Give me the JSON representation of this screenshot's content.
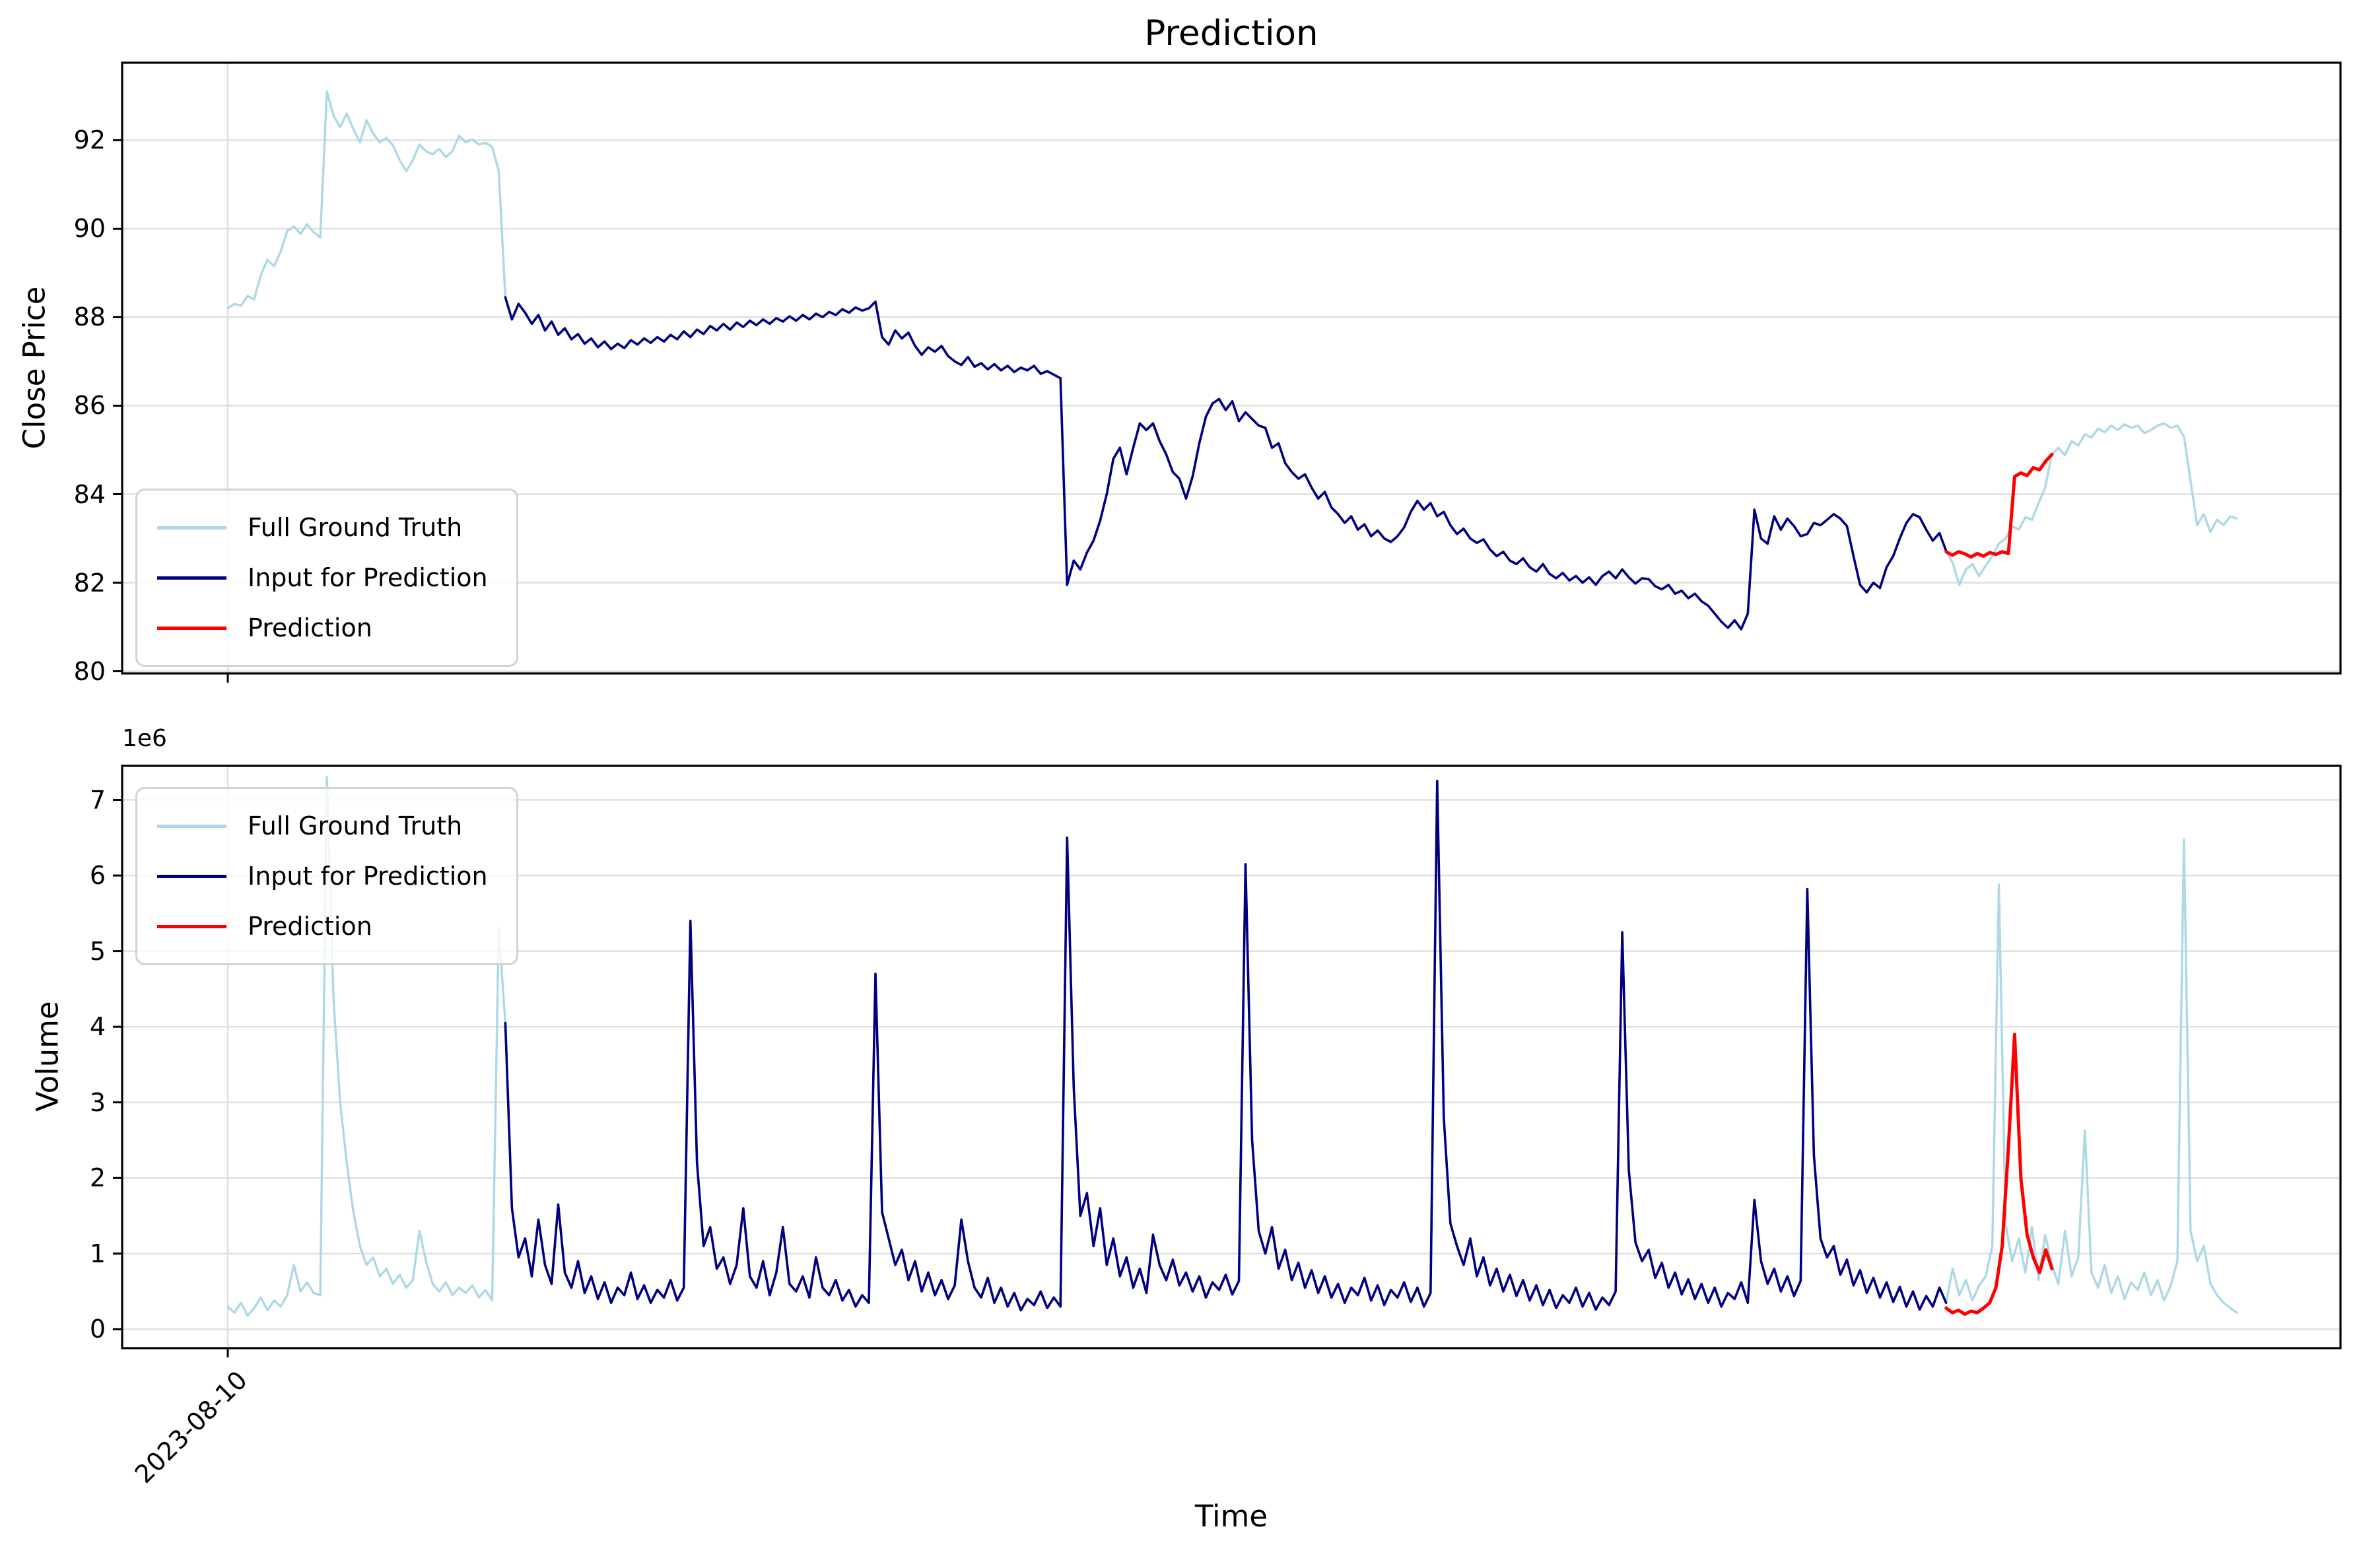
{
  "figure": {
    "title": "Prediction",
    "xlabel": "Time",
    "background": "#ffffff",
    "grid_color": "#dcdcdc",
    "spine_color": "#000000"
  },
  "series_meta": [
    {
      "name": "Full Ground Truth",
      "color": "#ADD8E6"
    },
    {
      "name": "Input for Prediction",
      "color": "#000080"
    },
    {
      "name": "Prediction",
      "color": "#FF0000"
    }
  ],
  "x_axis": {
    "tick_label": "2023-08-10",
    "tick_t": 0.0
  },
  "chart_data": [
    {
      "type": "line",
      "id": "price",
      "ylabel": "Close Price",
      "ylim": [
        79.95,
        93.75
      ],
      "yticks": [
        80,
        82,
        84,
        86,
        88,
        90,
        92
      ],
      "ytick_labels": [
        "80",
        "82",
        "84",
        "86",
        "88",
        "90",
        "92"
      ],
      "legend_position": "lower left",
      "input_window_t": [
        0.138,
        0.856
      ],
      "ground_truth": [
        88.2,
        88.3,
        88.26,
        88.48,
        88.4,
        88.95,
        89.3,
        89.15,
        89.48,
        89.95,
        90.05,
        89.88,
        90.1,
        89.92,
        89.8,
        93.1,
        92.55,
        92.3,
        92.6,
        92.25,
        91.95,
        92.45,
        92.15,
        91.95,
        92.05,
        91.88,
        91.55,
        91.3,
        91.55,
        91.9,
        91.75,
        91.68,
        91.8,
        91.62,
        91.75,
        92.1,
        91.95,
        92.02,
        91.9,
        91.94,
        91.85,
        91.3,
        88.45,
        87.95,
        88.3,
        88.1,
        87.85,
        88.05,
        87.7,
        87.9,
        87.6,
        87.75,
        87.5,
        87.62,
        87.4,
        87.52,
        87.32,
        87.45,
        87.28,
        87.4,
        87.3,
        87.48,
        87.38,
        87.52,
        87.42,
        87.55,
        87.45,
        87.6,
        87.5,
        87.68,
        87.55,
        87.72,
        87.62,
        87.8,
        87.7,
        87.85,
        87.72,
        87.88,
        87.78,
        87.92,
        87.82,
        87.95,
        87.85,
        87.98,
        87.9,
        88.02,
        87.92,
        88.05,
        87.95,
        88.08,
        88.0,
        88.12,
        88.05,
        88.18,
        88.1,
        88.22,
        88.15,
        88.2,
        88.35,
        87.55,
        87.38,
        87.7,
        87.52,
        87.65,
        87.35,
        87.15,
        87.32,
        87.22,
        87.35,
        87.12,
        87.0,
        86.92,
        87.1,
        86.88,
        86.96,
        86.82,
        86.94,
        86.8,
        86.9,
        86.76,
        86.86,
        86.8,
        86.9,
        86.72,
        86.78,
        86.7,
        86.62,
        81.95,
        82.5,
        82.3,
        82.68,
        82.95,
        83.4,
        84.0,
        84.8,
        85.05,
        84.45,
        85.05,
        85.6,
        85.45,
        85.6,
        85.2,
        84.9,
        84.5,
        84.35,
        83.9,
        84.4,
        85.15,
        85.75,
        86.05,
        86.15,
        85.9,
        86.1,
        85.65,
        85.85,
        85.7,
        85.55,
        85.5,
        85.05,
        85.15,
        84.7,
        84.5,
        84.35,
        84.45,
        84.15,
        83.9,
        84.05,
        83.7,
        83.55,
        83.35,
        83.5,
        83.2,
        83.32,
        83.05,
        83.18,
        83.0,
        82.92,
        83.05,
        83.25,
        83.6,
        83.85,
        83.65,
        83.8,
        83.5,
        83.6,
        83.3,
        83.1,
        83.22,
        83.0,
        82.9,
        82.98,
        82.75,
        82.6,
        82.7,
        82.5,
        82.42,
        82.55,
        82.35,
        82.25,
        82.42,
        82.2,
        82.1,
        82.22,
        82.05,
        82.15,
        82.0,
        82.12,
        81.95,
        82.15,
        82.25,
        82.1,
        82.3,
        82.12,
        81.98,
        82.1,
        82.08,
        81.92,
        81.85,
        81.95,
        81.75,
        81.82,
        81.65,
        81.75,
        81.58,
        81.48,
        81.3,
        81.12,
        80.98,
        81.15,
        80.95,
        81.3,
        83.65,
        83.0,
        82.88,
        83.5,
        83.2,
        83.45,
        83.28,
        83.05,
        83.1,
        83.35,
        83.3,
        83.42,
        83.55,
        83.45,
        83.28,
        82.6,
        81.95,
        81.78,
        82.0,
        81.88,
        82.35,
        82.6,
        83.0,
        83.35,
        83.55,
        83.48,
        83.2,
        82.95,
        83.12,
        82.72,
        82.45,
        81.95,
        82.3,
        82.42,
        82.15,
        82.38,
        82.6,
        82.88,
        83.0,
        83.28,
        83.2,
        83.48,
        83.42,
        83.8,
        84.15,
        84.9,
        85.05,
        84.88,
        85.2,
        85.1,
        85.35,
        85.28,
        85.48,
        85.4,
        85.55,
        85.45,
        85.58,
        85.5,
        85.55,
        85.38,
        85.45,
        85.55,
        85.6,
        85.5,
        85.55,
        85.3,
        84.3,
        83.3,
        83.55,
        83.15,
        83.42,
        83.3,
        83.5,
        83.45
      ],
      "prediction": {
        "t_start": 0.8553,
        "t_end": 0.908,
        "values": [
          82.7,
          82.62,
          82.7,
          82.65,
          82.58,
          82.66,
          82.6,
          82.68,
          82.64,
          82.7,
          82.66,
          84.4,
          84.48,
          84.42,
          84.6,
          84.55,
          84.75,
          84.9
        ]
      }
    },
    {
      "type": "line",
      "id": "volume",
      "ylabel": "Volume",
      "y_offset_label": "1e6",
      "unit_scale": 1000000,
      "ylim": [
        -0.25,
        7.45
      ],
      "yticks": [
        0,
        1,
        2,
        3,
        4,
        5,
        6,
        7
      ],
      "ytick_labels": [
        "0",
        "1",
        "2",
        "3",
        "4",
        "5",
        "6",
        "7"
      ],
      "legend_position": "upper left",
      "input_window_t": [
        0.138,
        0.856
      ],
      "ground_truth": [
        0.3,
        0.22,
        0.35,
        0.18,
        0.28,
        0.42,
        0.25,
        0.38,
        0.3,
        0.45,
        0.85,
        0.5,
        0.62,
        0.48,
        0.45,
        7.3,
        4.35,
        3.0,
        2.2,
        1.55,
        1.1,
        0.85,
        0.95,
        0.7,
        0.8,
        0.6,
        0.72,
        0.55,
        0.65,
        1.3,
        0.9,
        0.6,
        0.5,
        0.62,
        0.45,
        0.55,
        0.48,
        0.58,
        0.42,
        0.52,
        0.38,
        5.3,
        4.05,
        1.6,
        0.95,
        1.2,
        0.7,
        1.45,
        0.85,
        0.6,
        1.65,
        0.75,
        0.55,
        0.9,
        0.48,
        0.7,
        0.4,
        0.62,
        0.35,
        0.55,
        0.45,
        0.75,
        0.4,
        0.58,
        0.35,
        0.52,
        0.42,
        0.65,
        0.38,
        0.55,
        5.4,
        2.2,
        1.1,
        1.35,
        0.8,
        0.95,
        0.6,
        0.85,
        1.6,
        0.7,
        0.55,
        0.9,
        0.45,
        0.75,
        1.35,
        0.6,
        0.5,
        0.7,
        0.42,
        0.95,
        0.55,
        0.45,
        0.65,
        0.38,
        0.52,
        0.3,
        0.45,
        0.35,
        4.7,
        1.55,
        1.2,
        0.85,
        1.05,
        0.65,
        0.9,
        0.5,
        0.75,
        0.45,
        0.65,
        0.4,
        0.58,
        1.45,
        0.9,
        0.55,
        0.42,
        0.68,
        0.35,
        0.55,
        0.3,
        0.48,
        0.25,
        0.4,
        0.32,
        0.5,
        0.28,
        0.42,
        0.3,
        6.5,
        3.2,
        1.5,
        1.8,
        1.1,
        1.6,
        0.85,
        1.2,
        0.7,
        0.95,
        0.55,
        0.8,
        0.48,
        1.25,
        0.85,
        0.65,
        0.92,
        0.58,
        0.75,
        0.5,
        0.7,
        0.42,
        0.62,
        0.52,
        0.72,
        0.46,
        0.64,
        6.15,
        2.5,
        1.3,
        1.0,
        1.35,
        0.8,
        1.05,
        0.65,
        0.88,
        0.55,
        0.78,
        0.48,
        0.7,
        0.42,
        0.6,
        0.35,
        0.55,
        0.45,
        0.68,
        0.38,
        0.58,
        0.32,
        0.52,
        0.42,
        0.62,
        0.36,
        0.55,
        0.3,
        0.48,
        7.25,
        2.8,
        1.4,
        1.1,
        0.85,
        1.2,
        0.7,
        0.95,
        0.58,
        0.8,
        0.5,
        0.72,
        0.44,
        0.65,
        0.38,
        0.58,
        0.32,
        0.52,
        0.28,
        0.45,
        0.35,
        0.55,
        0.3,
        0.48,
        0.26,
        0.42,
        0.32,
        0.5,
        5.25,
        2.1,
        1.15,
        0.9,
        1.05,
        0.68,
        0.88,
        0.55,
        0.75,
        0.46,
        0.66,
        0.4,
        0.6,
        0.35,
        0.55,
        0.3,
        0.48,
        0.4,
        0.62,
        0.35,
        1.71,
        0.9,
        0.6,
        0.8,
        0.5,
        0.7,
        0.44,
        0.64,
        5.82,
        2.3,
        1.2,
        0.95,
        1.1,
        0.72,
        0.92,
        0.58,
        0.78,
        0.48,
        0.68,
        0.42,
        0.62,
        0.36,
        0.56,
        0.3,
        0.5,
        0.26,
        0.44,
        0.3,
        0.55,
        0.35,
        0.8,
        0.45,
        0.65,
        0.38,
        0.58,
        0.7,
        1.1,
        5.88,
        1.4,
        0.9,
        1.2,
        0.75,
        1.35,
        0.65,
        1.25,
        0.85,
        0.6,
        1.3,
        0.7,
        0.95,
        2.63,
        0.75,
        0.55,
        0.85,
        0.48,
        0.7,
        0.4,
        0.62,
        0.52,
        0.75,
        0.45,
        0.65,
        0.38,
        0.58,
        0.9,
        6.48,
        1.3,
        0.9,
        1.1,
        0.6,
        0.45,
        0.35,
        0.28,
        0.22
      ],
      "prediction": {
        "t_start": 0.8553,
        "t_end": 0.908,
        "values": [
          0.28,
          0.22,
          0.25,
          0.2,
          0.24,
          0.22,
          0.28,
          0.35,
          0.55,
          1.1,
          2.4,
          3.9,
          2.0,
          1.25,
          0.95,
          0.75,
          1.05,
          0.8
        ]
      }
    }
  ]
}
